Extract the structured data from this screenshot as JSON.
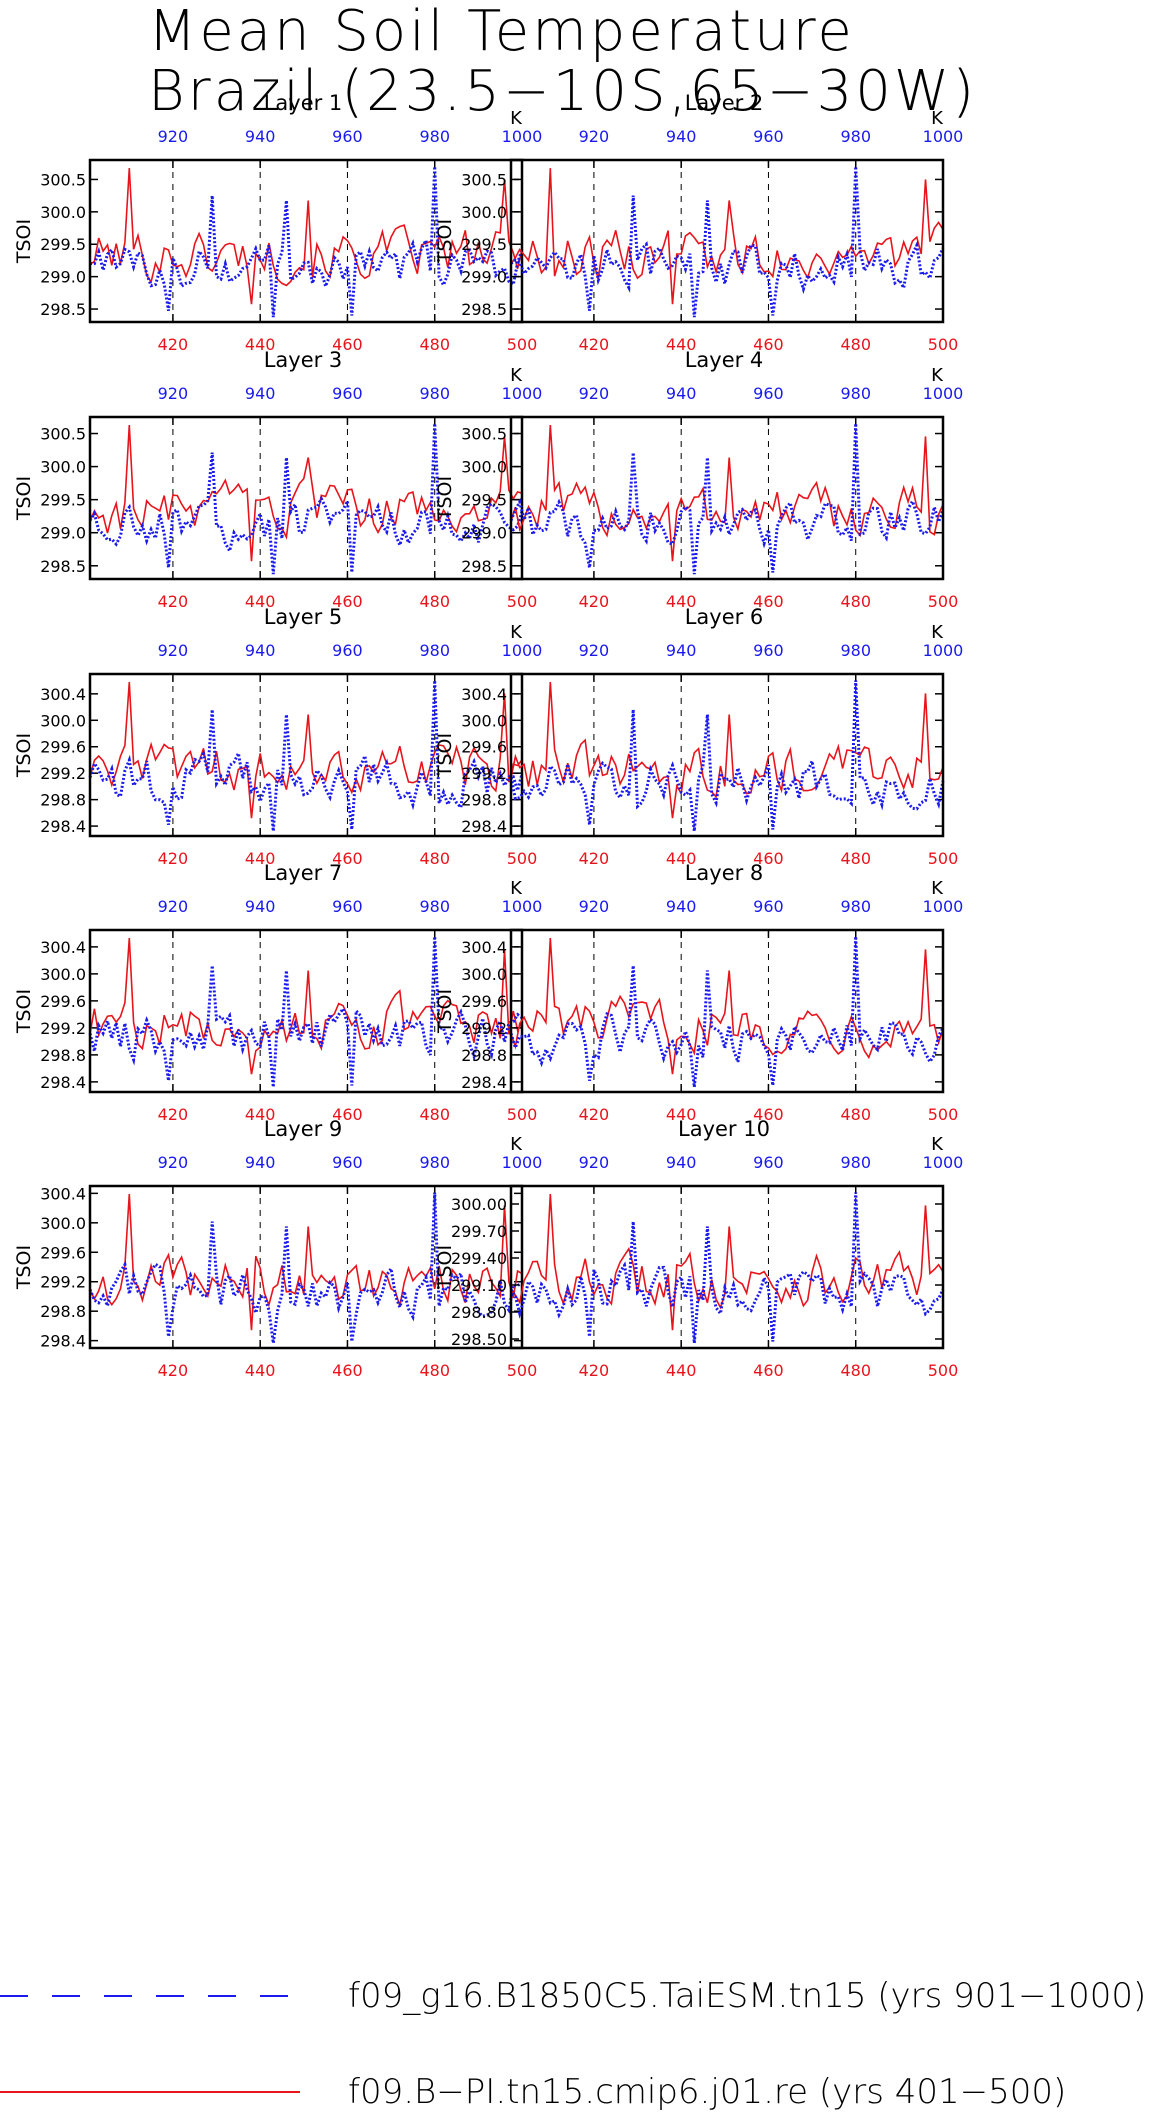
{
  "title": {
    "line1": "Mean Soil Temperature",
    "line2": "Brazil (23.5−10S,65−30W)"
  },
  "colors": {
    "red_series": "#e8141c",
    "blue_series": "#1a1aee",
    "axis": "#000000",
    "bottom_ticks": "#e8141c",
    "top_ticks": "#1a1aee"
  },
  "legend": [
    {
      "label": "f09_g16.B1850C5.TaiESM.tn15 (yrs 901−1000)",
      "color": "#1a1aee",
      "style": "dashed"
    },
    {
      "label": "f09.B−PI.tn15.cmip6.j01.re (yrs 401−500)",
      "color": "#e8141c",
      "style": "solid"
    }
  ],
  "chart_data": [
    {
      "type": "line",
      "title": "Layer 1",
      "ylabel": "TSOI",
      "ylim": [
        298.3,
        300.8
      ],
      "yticks": [
        "298.5",
        "299.0",
        "299.5",
        "300.0",
        "300.5"
      ],
      "xbottom": {
        "ticks": [
          "420",
          "440",
          "460",
          "480",
          "500"
        ],
        "range": [
          401,
          500
        ]
      },
      "xtop": {
        "ticks": [
          "920",
          "940",
          "960",
          "980",
          "1000"
        ],
        "range": [
          901,
          1000
        ],
        "unit": "K"
      },
      "series": [
        {
          "name": "f09_g16.B1850C5.TaiESM.tn15 (yrs 901−1000)",
          "color": "#1a1aee",
          "style": "dashed"
        },
        {
          "name": "f09.B−PI.tn15.cmip6.j01.re (yrs 401−500)",
          "color": "#e8141c",
          "style": "solid"
        }
      ]
    },
    {
      "type": "line",
      "title": "Layer 2",
      "ylabel": "TSOI",
      "ylim": [
        298.3,
        300.8
      ],
      "yticks": [
        "298.5",
        "299.0",
        "299.5",
        "300.0",
        "300.5"
      ],
      "xbottom": {
        "ticks": [
          "420",
          "440",
          "460",
          "480",
          "500"
        ],
        "range": [
          401,
          500
        ]
      },
      "xtop": {
        "ticks": [
          "920",
          "940",
          "960",
          "980",
          "1000"
        ],
        "range": [
          901,
          1000
        ],
        "unit": "K"
      },
      "series": [
        {
          "name": "f09_g16.B1850C5.TaiESM.tn15 (yrs 901−1000)",
          "color": "#1a1aee",
          "style": "dashed"
        },
        {
          "name": "f09.B−PI.tn15.cmip6.j01.re (yrs 401−500)",
          "color": "#e8141c",
          "style": "solid"
        }
      ]
    },
    {
      "type": "line",
      "title": "Layer 3",
      "ylabel": "TSOI",
      "ylim": [
        298.3,
        300.75
      ],
      "yticks": [
        "298.5",
        "299.0",
        "299.5",
        "300.0",
        "300.5"
      ],
      "xbottom": {
        "ticks": [
          "420",
          "440",
          "460",
          "480",
          "500"
        ],
        "range": [
          401,
          500
        ]
      },
      "xtop": {
        "ticks": [
          "920",
          "940",
          "960",
          "980",
          "1000"
        ],
        "range": [
          901,
          1000
        ],
        "unit": "K"
      },
      "series": [
        {
          "name": "f09_g16.B1850C5.TaiESM.tn15 (yrs 901−1000)",
          "color": "#1a1aee",
          "style": "dashed"
        },
        {
          "name": "f09.B−PI.tn15.cmip6.j01.re (yrs 401−500)",
          "color": "#e8141c",
          "style": "solid"
        }
      ]
    },
    {
      "type": "line",
      "title": "Layer 4",
      "ylabel": "TSOI",
      "ylim": [
        298.3,
        300.75
      ],
      "yticks": [
        "298.5",
        "299.0",
        "299.5",
        "300.0",
        "300.5"
      ],
      "xbottom": {
        "ticks": [
          "420",
          "440",
          "460",
          "480",
          "500"
        ],
        "range": [
          401,
          500
        ]
      },
      "xtop": {
        "ticks": [
          "920",
          "940",
          "960",
          "980",
          "1000"
        ],
        "range": [
          901,
          1000
        ],
        "unit": "K"
      },
      "series": [
        {
          "name": "f09_g16.B1850C5.TaiESM.tn15 (yrs 901−1000)",
          "color": "#1a1aee",
          "style": "dashed"
        },
        {
          "name": "f09.B−PI.tn15.cmip6.j01.re (yrs 401−500)",
          "color": "#e8141c",
          "style": "solid"
        }
      ]
    },
    {
      "type": "line",
      "title": "Layer 5",
      "ylabel": "TSOI",
      "ylim": [
        298.25,
        300.7
      ],
      "yticks": [
        "298.4",
        "298.8",
        "299.2",
        "299.6",
        "300.0",
        "300.4"
      ],
      "xbottom": {
        "ticks": [
          "420",
          "440",
          "460",
          "480",
          "500"
        ],
        "range": [
          401,
          500
        ]
      },
      "xtop": {
        "ticks": [
          "920",
          "940",
          "960",
          "980",
          "1000"
        ],
        "range": [
          901,
          1000
        ],
        "unit": "K"
      },
      "series": [
        {
          "name": "f09_g16.B1850C5.TaiESM.tn15 (yrs 901−1000)",
          "color": "#1a1aee",
          "style": "dashed"
        },
        {
          "name": "f09.B−PI.tn15.cmip6.j01.re (yrs 401−500)",
          "color": "#e8141c",
          "style": "solid"
        }
      ]
    },
    {
      "type": "line",
      "title": "Layer 6",
      "ylabel": "TSOI",
      "ylim": [
        298.25,
        300.7
      ],
      "yticks": [
        "298.4",
        "298.8",
        "299.2",
        "299.6",
        "300.0",
        "300.4"
      ],
      "xbottom": {
        "ticks": [
          "420",
          "440",
          "460",
          "480",
          "500"
        ],
        "range": [
          401,
          500
        ]
      },
      "xtop": {
        "ticks": [
          "920",
          "940",
          "960",
          "980",
          "1000"
        ],
        "range": [
          901,
          1000
        ],
        "unit": "K"
      },
      "series": [
        {
          "name": "f09_g16.B1850C5.TaiESM.tn15 (yrs 901−1000)",
          "color": "#1a1aee",
          "style": "dashed"
        },
        {
          "name": "f09.B−PI.tn15.cmip6.j01.re (yrs 401−500)",
          "color": "#e8141c",
          "style": "solid"
        }
      ]
    },
    {
      "type": "line",
      "title": "Layer 7",
      "ylabel": "TSOI",
      "ylim": [
        298.25,
        300.65
      ],
      "yticks": [
        "298.4",
        "298.8",
        "299.2",
        "299.6",
        "300.0",
        "300.4"
      ],
      "xbottom": {
        "ticks": [
          "420",
          "440",
          "460",
          "480",
          "500"
        ],
        "range": [
          401,
          500
        ]
      },
      "xtop": {
        "ticks": [
          "920",
          "940",
          "960",
          "980",
          "1000"
        ],
        "range": [
          901,
          1000
        ],
        "unit": "K"
      },
      "series": [
        {
          "name": "f09_g16.B1850C5.TaiESM.tn15 (yrs 901−1000)",
          "color": "#1a1aee",
          "style": "dashed"
        },
        {
          "name": "f09.B−PI.tn15.cmip6.j01.re (yrs 401−500)",
          "color": "#e8141c",
          "style": "solid"
        }
      ]
    },
    {
      "type": "line",
      "title": "Layer 8",
      "ylabel": "TSOI",
      "ylim": [
        298.25,
        300.65
      ],
      "yticks": [
        "298.4",
        "298.8",
        "299.2",
        "299.6",
        "300.0",
        "300.4"
      ],
      "xbottom": {
        "ticks": [
          "420",
          "440",
          "460",
          "480",
          "500"
        ],
        "range": [
          401,
          500
        ]
      },
      "xtop": {
        "ticks": [
          "920",
          "940",
          "960",
          "980",
          "1000"
        ],
        "range": [
          901,
          1000
        ],
        "unit": "K"
      },
      "series": [
        {
          "name": "f09_g16.B1850C5.TaiESM.tn15 (yrs 901−1000)",
          "color": "#1a1aee",
          "style": "dashed"
        },
        {
          "name": "f09.B−PI.tn15.cmip6.j01.re (yrs 401−500)",
          "color": "#e8141c",
          "style": "solid"
        }
      ]
    },
    {
      "type": "line",
      "title": "Layer 9",
      "ylabel": "TSOI",
      "ylim": [
        298.3,
        300.5
      ],
      "yticks": [
        "298.4",
        "298.8",
        "299.2",
        "299.6",
        "300.0",
        "300.4"
      ],
      "xbottom": {
        "ticks": [
          "420",
          "440",
          "460",
          "480",
          "500"
        ],
        "range": [
          401,
          500
        ]
      },
      "xtop": {
        "ticks": [
          "920",
          "940",
          "960",
          "980",
          "1000"
        ],
        "range": [
          901,
          1000
        ],
        "unit": "K"
      },
      "series": [
        {
          "name": "f09_g16.B1850C5.TaiESM.tn15 (yrs 901−1000)",
          "color": "#1a1aee",
          "style": "dashed"
        },
        {
          "name": "f09.B−PI.tn15.cmip6.j01.re (yrs 401−500)",
          "color": "#e8141c",
          "style": "solid"
        }
      ]
    },
    {
      "type": "line",
      "title": "Layer 10",
      "ylabel": "TSOI",
      "ylim": [
        298.4,
        300.2
      ],
      "yticks": [
        "298.50",
        "298.80",
        "299.10",
        "299.40",
        "299.70",
        "300.00"
      ],
      "xbottom": {
        "ticks": [
          "420",
          "440",
          "460",
          "480",
          "500"
        ],
        "range": [
          401,
          500
        ]
      },
      "xtop": {
        "ticks": [
          "920",
          "940",
          "960",
          "980",
          "1000"
        ],
        "range": [
          901,
          1000
        ],
        "unit": "K"
      },
      "series": [
        {
          "name": "f09_g16.B1850C5.TaiESM.tn15 (yrs 901−1000)",
          "color": "#1a1aee",
          "style": "dashed"
        },
        {
          "name": "f09.B−PI.tn15.cmip6.j01.re (yrs 401−500)",
          "color": "#e8141c",
          "style": "solid"
        }
      ]
    }
  ]
}
